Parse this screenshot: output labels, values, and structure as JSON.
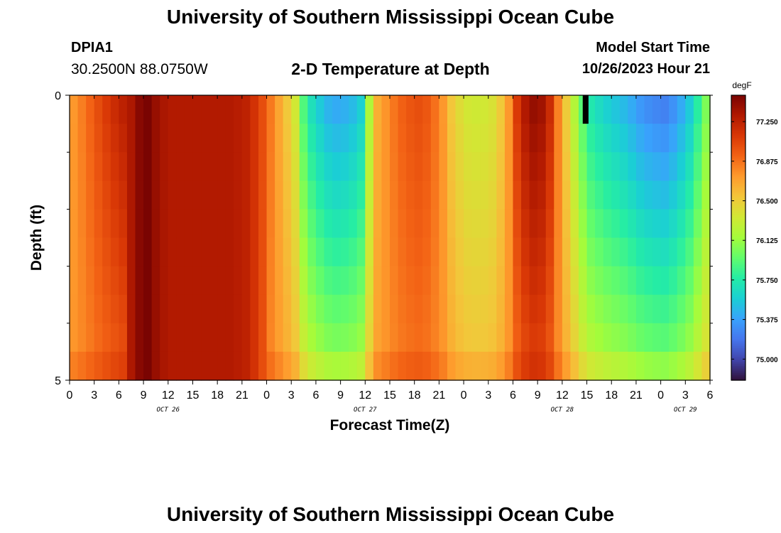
{
  "header": {
    "title": "University of Southern Mississippi Ocean Cube",
    "station": "DPIA1",
    "coordinates": "30.2500N  88.0750W",
    "subtitle": "2-D Temperature at Depth",
    "model_start_label": "Model Start Time",
    "model_start_value": "10/26/2023 Hour 21"
  },
  "footer": {
    "title": "University of Southern Mississippi Ocean Cube"
  },
  "chart_data": {
    "type": "heatmap",
    "xlabel": "Forecast Time(Z)",
    "ylabel": "Depth (ft)",
    "x_tick_labels": [
      "0",
      "3",
      "6",
      "9",
      "12",
      "15",
      "18",
      "21",
      "0",
      "3",
      "6",
      "9",
      "12",
      "15",
      "18",
      "21",
      "0",
      "3",
      "6",
      "9",
      "12",
      "15",
      "18",
      "21",
      "0",
      "3",
      "6"
    ],
    "day_labels": [
      {
        "label": "OCT 26",
        "at_hour": 12
      },
      {
        "label": "OCT 27",
        "at_hour": 36
      },
      {
        "label": "OCT 28",
        "at_hour": 60
      },
      {
        "label": "OCT 29",
        "at_hour": 75
      }
    ],
    "x_range_hours": [
      0,
      78
    ],
    "y_range_ft": [
      0,
      5
    ],
    "y_tick_labels": [
      "0",
      "5"
    ],
    "y_minor_ticks": [
      1,
      2,
      3,
      4
    ],
    "colorbar": {
      "unit": "degF",
      "min": 74.8,
      "max": 77.5,
      "tick_values": [
        77.25,
        76.875,
        76.5,
        76.125,
        75.75,
        75.375,
        75.0
      ],
      "tick_labels": [
        "77.250",
        "76.875",
        "76.500",
        "76.125",
        "75.750",
        "75.375",
        "75.000"
      ],
      "colormap": [
        "#30123b",
        "#4145ab",
        "#4675ed",
        "#39a2fc",
        "#1bcfd4",
        "#24eca6",
        "#61fc6c",
        "#a4fc3b",
        "#d1e834",
        "#f3c63a",
        "#fe9b2d",
        "#f36315",
        "#d93806",
        "#b11901",
        "#7a0402"
      ]
    },
    "depth_rows_ft": [
      0.25,
      0.75,
      1.25,
      1.75,
      2.25,
      2.75,
      3.25,
      3.75,
      4.25,
      4.75
    ],
    "time_hours": [
      0,
      1,
      2,
      3,
      4,
      5,
      6,
      7,
      8,
      9,
      10,
      11,
      12,
      13,
      14,
      15,
      16,
      17,
      18,
      19,
      20,
      21,
      22,
      23,
      24,
      25,
      26,
      27,
      28,
      29,
      30,
      31,
      32,
      33,
      34,
      35,
      36,
      37,
      38,
      39,
      40,
      41,
      42,
      43,
      44,
      45,
      46,
      47,
      48,
      49,
      50,
      51,
      52,
      53,
      54,
      55,
      56,
      57,
      58,
      59,
      60,
      61,
      62,
      63,
      64,
      65,
      66,
      67,
      68,
      69,
      70,
      71,
      72,
      73,
      74,
      75,
      76,
      77
    ],
    "surface_temp_degF": [
      76.74,
      76.83,
      76.93,
      77.03,
      77.12,
      77.2,
      77.27,
      77.32,
      77.45,
      77.5,
      77.4,
      77.33,
      77.3,
      77.3,
      77.3,
      77.3,
      77.3,
      77.3,
      77.3,
      77.3,
      77.28,
      77.25,
      77.15,
      77.02,
      76.85,
      76.68,
      76.52,
      76.33,
      75.88,
      75.65,
      75.52,
      75.42,
      75.38,
      75.4,
      75.45,
      75.55,
      76.18,
      76.64,
      76.75,
      76.86,
      76.94,
      76.99,
      77.02,
      76.98,
      76.88,
      76.74,
      76.53,
      76.41,
      76.34,
      76.32,
      76.33,
      76.37,
      76.51,
      76.74,
      77.12,
      77.32,
      77.42,
      77.38,
      77.2,
      76.82,
      76.5,
      76.2,
      75.9,
      75.7,
      75.62,
      75.55,
      75.5,
      75.45,
      75.38,
      75.3,
      75.25,
      75.22,
      75.2,
      75.27,
      75.38,
      75.52,
      75.75,
      76.02
    ],
    "uniform_columns_hours": [
      7,
      8,
      9,
      10,
      11,
      12,
      13,
      14,
      15,
      16,
      17,
      18,
      19,
      20,
      21,
      22,
      23
    ],
    "black_patch": {
      "hours": [
        62.5,
        63.2
      ],
      "depth_ft": [
        0,
        0.5
      ]
    }
  }
}
